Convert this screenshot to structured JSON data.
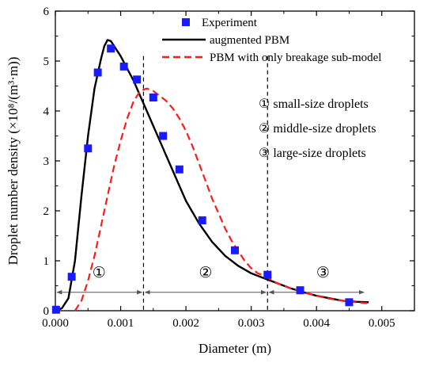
{
  "chart_data": {
    "type": "line",
    "title": "",
    "xlabel": "Diameter (m)",
    "ylabel": "Droplet number density (×10⁸/(m³·m))",
    "xlim": [
      0,
      0.0055
    ],
    "ylim": [
      0,
      6
    ],
    "x_ticks": [
      "0.000",
      "0.001",
      "0.002",
      "0.003",
      "0.004",
      "0.005"
    ],
    "y_ticks": [
      "0",
      "1",
      "2",
      "3",
      "4",
      "5",
      "6"
    ],
    "grid": false,
    "legend_position": "top-right",
    "series": [
      {
        "name": "Experiment",
        "kind": "scatter",
        "color": "#1a1aff",
        "marker": "square",
        "x": [
          1e-05,
          0.00025,
          0.0005,
          0.00065,
          0.00085,
          0.00105,
          0.00125,
          0.0015,
          0.00165,
          0.0019,
          0.00225,
          0.00275,
          0.00325,
          0.00375,
          0.0045
        ],
        "y": [
          0.02,
          0.68,
          3.25,
          4.77,
          5.25,
          4.89,
          4.63,
          4.27,
          3.5,
          2.83,
          1.81,
          1.21,
          0.72,
          0.41,
          0.17
        ]
      },
      {
        "name": "augmented PBM",
        "kind": "line",
        "color": "#000000",
        "dash": "solid",
        "x": [
          0.0,
          0.0001,
          0.0002,
          0.0003,
          0.0004,
          0.0005,
          0.0006,
          0.0007,
          0.00075,
          0.0008,
          0.00085,
          0.0009,
          0.001,
          0.0011,
          0.0012,
          0.0013,
          0.0014,
          0.0015,
          0.0016,
          0.0017,
          0.0018,
          0.0019,
          0.002,
          0.0022,
          0.0024,
          0.0026,
          0.0028,
          0.003,
          0.0032,
          0.0034,
          0.0036,
          0.0038,
          0.004,
          0.0042,
          0.0044,
          0.0046,
          0.0048
        ],
        "y": [
          0.0,
          0.05,
          0.25,
          1.0,
          2.3,
          3.5,
          4.45,
          5.05,
          5.3,
          5.42,
          5.4,
          5.3,
          5.1,
          4.85,
          4.6,
          4.3,
          4.0,
          3.7,
          3.4,
          3.1,
          2.8,
          2.5,
          2.2,
          1.75,
          1.38,
          1.1,
          0.9,
          0.75,
          0.65,
          0.55,
          0.45,
          0.37,
          0.3,
          0.25,
          0.2,
          0.18,
          0.17
        ]
      },
      {
        "name": "PBM with only breakage sub-model",
        "kind": "line",
        "color": "#ff1a1a",
        "dash": "dashed",
        "x": [
          0.0003,
          0.0004,
          0.0005,
          0.0006,
          0.0007,
          0.0008,
          0.0009,
          0.001,
          0.0011,
          0.0012,
          0.0013,
          0.0014,
          0.0015,
          0.0016,
          0.0017,
          0.0018,
          0.0019,
          0.002,
          0.0021,
          0.0022,
          0.0023,
          0.0024,
          0.0025,
          0.0026,
          0.0027,
          0.0028,
          0.0029,
          0.003,
          0.0031,
          0.0032,
          0.0034,
          0.0036,
          0.0038,
          0.004,
          0.0042,
          0.0044,
          0.0046,
          0.0048
        ],
        "y": [
          0.0,
          0.2,
          0.6,
          1.1,
          1.7,
          2.3,
          2.9,
          3.4,
          3.85,
          4.2,
          4.4,
          4.45,
          4.4,
          4.3,
          4.2,
          4.05,
          3.85,
          3.6,
          3.3,
          2.95,
          2.6,
          2.25,
          1.95,
          1.65,
          1.4,
          1.2,
          1.0,
          0.85,
          0.75,
          0.7,
          0.55,
          0.45,
          0.37,
          0.3,
          0.24,
          0.2,
          0.17,
          0.15
        ]
      }
    ],
    "boundaries": [
      0.00135,
      0.00325
    ],
    "region_labels": [
      {
        "symbol": "①",
        "x": 0.00067
      },
      {
        "symbol": "②",
        "x": 0.0023
      },
      {
        "symbol": "③",
        "x": 0.0041
      }
    ],
    "region_arrow_y": 0.37,
    "region_label_y": 0.78,
    "annotations": [
      "① small-size droplets",
      "② middle-size droplets",
      "③ large-size droplets"
    ]
  }
}
